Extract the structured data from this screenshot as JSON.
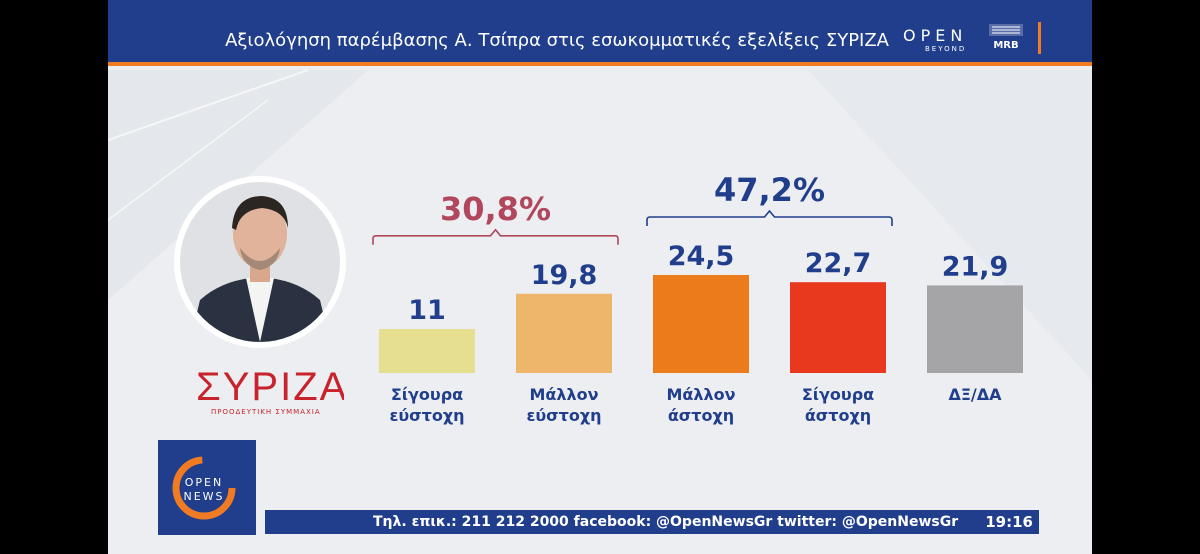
{
  "header": {
    "title": "Αξιολόγηση παρέμβασης  Α. Τσίπρα στις εσωκομματικές εξελίξεις ΣΥΡΙΖΑ",
    "open_logo_main": "OPEN",
    "open_logo_sub": "BEYOND",
    "mrb_logo": "MRB"
  },
  "party": {
    "logo_text": "ΣΥΡΙΖΑ",
    "logo_sub": "ΠΡΟΟΔΕΥΤΙΚΗ ΣΥΜΜΑΧΙΑ"
  },
  "news_logo": {
    "line1": "OPEN",
    "line2": "NEWS"
  },
  "ticker": {
    "text": "Τηλ. επικ.: 211 212 2000 facebook: @OpenNewsGr twitter: @OpenNewsGr",
    "time": "19:16"
  },
  "chart_data": {
    "type": "bar",
    "categories": [
      [
        "Σίγουρα",
        "εύστοχη"
      ],
      [
        "Μάλλον",
        "εύστοχη"
      ],
      [
        "Μάλλον",
        "άστοχη"
      ],
      [
        "Σίγουρα",
        "άστοχη"
      ],
      [
        "ΔΞ/ΔΑ"
      ]
    ],
    "values": [
      11,
      19.8,
      24.5,
      22.7,
      21.9
    ],
    "value_labels": [
      "11",
      "19,8",
      "24,5",
      "22,7",
      "21,9"
    ],
    "bar_colors": [
      "#e6df8f",
      "#eeb66a",
      "#ec7b1c",
      "#e8391f",
      "#a5a5a7"
    ],
    "groups": [
      {
        "label": "30,8%",
        "from": 0,
        "to": 1,
        "color": "#b0475c"
      },
      {
        "label": "47,2%",
        "from": 2,
        "to": 3,
        "color": "#203e8c"
      }
    ],
    "title": "",
    "xlabel": "",
    "ylabel": ""
  }
}
